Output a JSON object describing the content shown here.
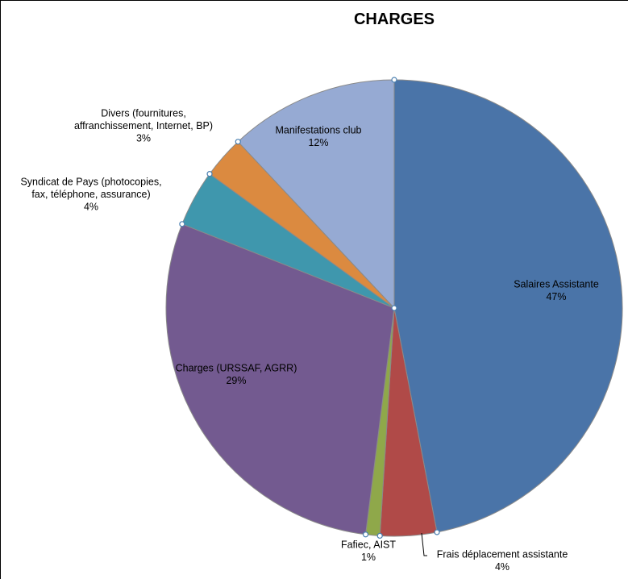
{
  "chart_data": {
    "type": "pie",
    "title": "CHARGES",
    "start_angle_deg": 0,
    "direction": "clockwise",
    "slices": [
      {
        "label_lines": [
          "Salaires Assistante"
        ],
        "percent_label": "47%",
        "value": 47,
        "color": "#4a74a8"
      },
      {
        "label_lines": [
          "Frais déplacement assistante"
        ],
        "percent_label": "4%",
        "value": 4,
        "color": "#b04a48"
      },
      {
        "label_lines": [
          "Fafiec, AIST"
        ],
        "percent_label": "1%",
        "value": 1,
        "color": "#8fa84a"
      },
      {
        "label_lines": [
          "Charges (URSSAF, AGRR)"
        ],
        "percent_label": "29%",
        "value": 29,
        "color": "#735a90"
      },
      {
        "label_lines": [
          "Syndicat de Pays (photocopies,",
          "fax, téléphone, assurance)"
        ],
        "percent_label": "4%",
        "value": 4,
        "color": "#3f97ad"
      },
      {
        "label_lines": [
          "Divers (fournitures,",
          "affranchissement, Internet, BP)"
        ],
        "percent_label": "3%",
        "value": 3,
        "color": "#db8a40"
      },
      {
        "label_lines": [
          "Manifestations club"
        ],
        "percent_label": "12%",
        "value": 12,
        "color": "#96aad3"
      }
    ]
  }
}
